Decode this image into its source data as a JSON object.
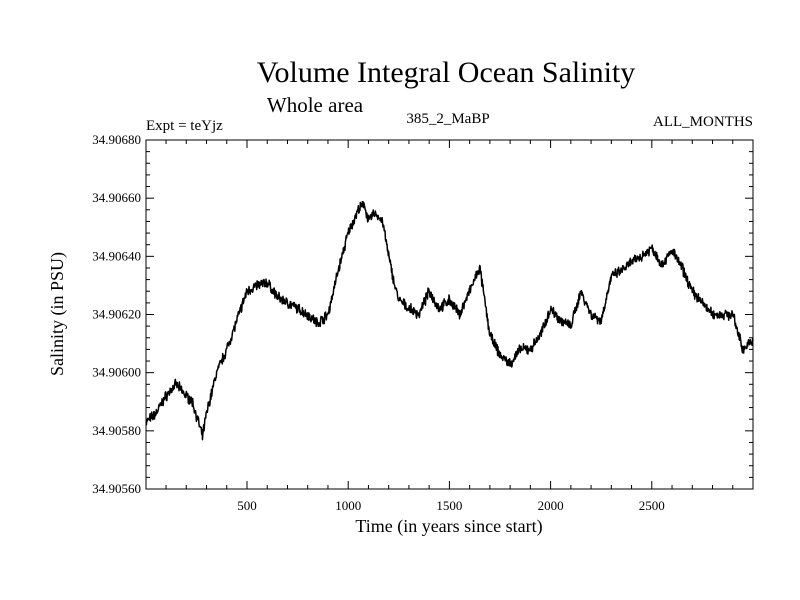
{
  "chart_data": {
    "type": "line",
    "title": "Volume Integral Ocean Salinity",
    "subtitle": "Whole area",
    "info_left": "Expt = teYjz",
    "info_center": "385_2_MaBP",
    "info_right": "ALL_MONTHS",
    "xlabel": "Time (in years since start)",
    "ylabel": "Salinity (in PSU)",
    "xlim": [
      1,
      3000
    ],
    "ylim": [
      34.9056,
      34.9068
    ],
    "x_ticks": [
      500,
      1000,
      1500,
      2000,
      2500
    ],
    "x_tick_labels": [
      "500",
      "1000",
      "1500",
      "2000",
      "2500"
    ],
    "y_ticks": [
      34.9056,
      34.9058,
      34.906,
      34.9062,
      34.9064,
      34.9066,
      34.9068
    ],
    "y_tick_labels": [
      "34.90560",
      "34.90580",
      "34.90600",
      "34.90620",
      "34.90640",
      "34.90660",
      "34.90680"
    ],
    "series": [
      {
        "name": "Salinity",
        "color": "#000000",
        "x": [
          1,
          50,
          100,
          150,
          200,
          230,
          260,
          280,
          300,
          350,
          400,
          450,
          500,
          550,
          600,
          650,
          700,
          750,
          800,
          850,
          900,
          950,
          1000,
          1050,
          1080,
          1100,
          1130,
          1170,
          1200,
          1230,
          1250,
          1300,
          1350,
          1400,
          1450,
          1500,
          1550,
          1600,
          1650,
          1700,
          1750,
          1800,
          1850,
          1900,
          1950,
          2000,
          2050,
          2100,
          2150,
          2200,
          2250,
          2300,
          2350,
          2400,
          2450,
          2500,
          2550,
          2600,
          2650,
          2700,
          2750,
          2800,
          2850,
          2900,
          2950,
          3000
        ],
        "y": [
          34.90583,
          34.90586,
          34.90592,
          34.90596,
          34.90592,
          34.9059,
          34.90583,
          34.90578,
          34.90586,
          34.906,
          34.90608,
          34.90618,
          34.90628,
          34.9063,
          34.90631,
          34.90626,
          34.90624,
          34.90622,
          34.9062,
          34.90617,
          34.9062,
          34.90635,
          34.90648,
          34.90656,
          34.90658,
          34.90652,
          34.90655,
          34.90652,
          34.9064,
          34.9063,
          34.90625,
          34.90622,
          34.9062,
          34.90628,
          34.90622,
          34.90625,
          34.9062,
          34.90628,
          34.90636,
          34.90613,
          34.90606,
          34.90603,
          34.90608,
          34.90608,
          34.90613,
          34.90622,
          34.90618,
          34.90616,
          34.90628,
          34.9062,
          34.90618,
          34.90633,
          34.90635,
          34.90638,
          34.9064,
          34.90643,
          34.90637,
          34.90642,
          34.90636,
          34.90628,
          34.90624,
          34.9062,
          34.9062,
          34.9062,
          34.90608,
          34.90611
        ]
      }
    ]
  }
}
